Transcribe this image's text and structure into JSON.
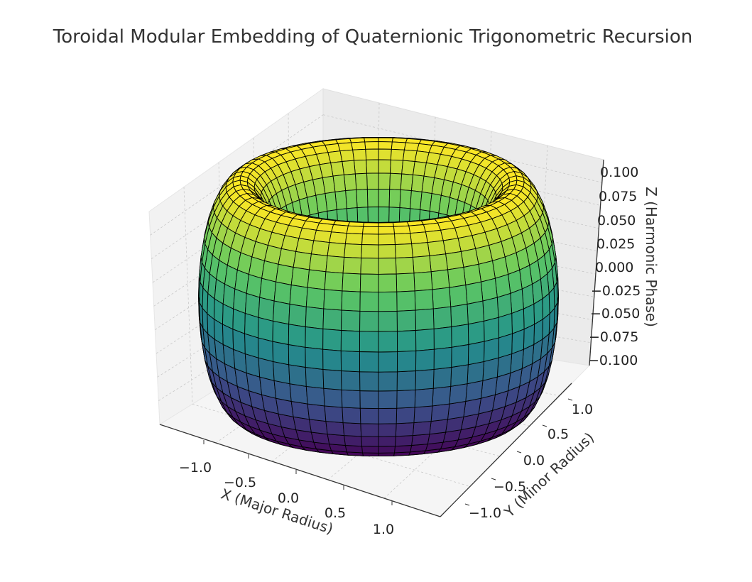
{
  "chart_data": {
    "type": "surface3d",
    "title": "Toroidal Modular Embedding of Quaternionic Trigonometric Recursion",
    "xlabel": "X (Major Radius)",
    "ylabel": "Y (Minor Radius)",
    "zlabel": "Z (Harmonic Phase)",
    "x_ticks": [
      "−1.0",
      "−0.5",
      "0.0",
      "0.5",
      "1.0"
    ],
    "y_ticks": [
      "−1.0",
      "−0.5",
      "0.0",
      "0.5",
      "1.0"
    ],
    "z_ticks": [
      "−0.100",
      "−0.075",
      "−0.050",
      "−0.025",
      "0.000",
      "0.025",
      "0.050",
      "0.075",
      "0.100"
    ],
    "xlim": [
      -1.3,
      1.3
    ],
    "ylim": [
      -1.3,
      1.3
    ],
    "zlim": [
      -0.11,
      0.11
    ],
    "surface": {
      "shape": "torus",
      "major_radius": 1.0,
      "minor_radius": 0.3,
      "z_amplitude": 0.1,
      "colormap": "viridis",
      "edgecolor": "#000000"
    },
    "grid": true
  }
}
